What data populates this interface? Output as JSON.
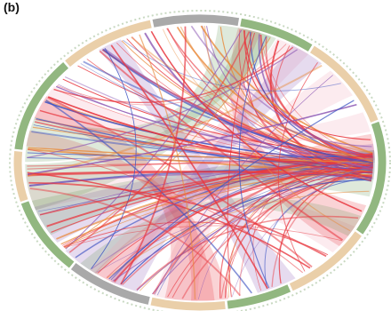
{
  "figure": {
    "panel_label": "(b)"
  },
  "palette": {
    "background": "#ffffff",
    "ring_green": "#7faa6a",
    "ring_tan": "#e6c79a",
    "ring_gray": "#9a9a9a",
    "ribbon_red": "#e8373f",
    "ribbon_pink": "#f2a6b6",
    "ribbon_purple": "#8f5bb5",
    "ribbon_blue": "#3d53c2",
    "ribbon_green": "#6a9a5a",
    "ribbon_orange": "#e8893a"
  }
}
